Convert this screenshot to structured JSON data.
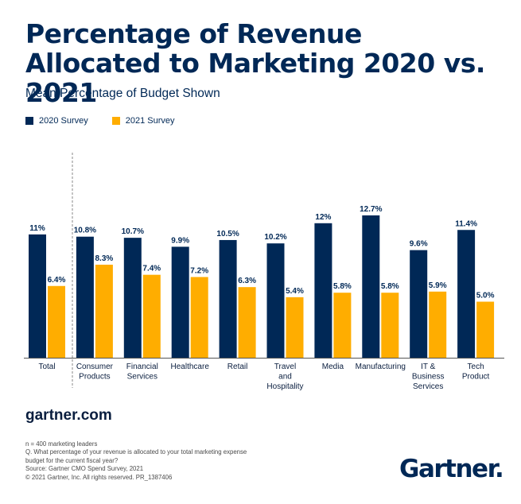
{
  "title": "Percentage of Revenue Allocated to Marketing 2020 vs. 2021",
  "subtitle": "Mean Percentage of Budget Shown",
  "legend": [
    {
      "label": "2020 Survey",
      "color": "#002856"
    },
    {
      "label": "2021 Survey",
      "color": "#ffad00"
    }
  ],
  "chart_data": {
    "type": "bar",
    "categories": [
      [
        "Total"
      ],
      [
        "Consumer",
        "Products"
      ],
      [
        "Financial",
        "Services"
      ],
      [
        "Healthcare"
      ],
      [
        "Retail"
      ],
      [
        "Travel",
        "and",
        "Hospitality"
      ],
      [
        "Media"
      ],
      [
        "Manufacturing"
      ],
      [
        "IT &",
        "Business",
        "Services"
      ],
      [
        "Tech",
        "Product"
      ]
    ],
    "series": [
      {
        "name": "2020 Survey",
        "color": "#002856",
        "values": [
          11,
          10.8,
          10.7,
          9.9,
          10.5,
          10.2,
          12,
          12.7,
          9.6,
          11.4
        ],
        "labels": [
          "11%",
          "10.8%",
          "10.7%",
          "9.9%",
          "10.5%",
          "10.2%",
          "12%",
          "12.7%",
          "9.6%",
          "11.4%"
        ]
      },
      {
        "name": "2021 Survey",
        "color": "#ffad00",
        "values": [
          6.4,
          8.3,
          7.4,
          7.2,
          6.3,
          5.4,
          5.8,
          5.8,
          5.9,
          5.0
        ],
        "labels": [
          "6.4%",
          "8.3%",
          "7.4%",
          "7.2%",
          "6.3%",
          "5.4%",
          "5.8%",
          "5.8%",
          "5.9%",
          "5.0%"
        ]
      }
    ],
    "title": "",
    "xlabel": "",
    "ylabel": "",
    "ylim": [
      0,
      14
    ],
    "grid": false,
    "legend_position": "top-left"
  },
  "site": "gartner.com",
  "footnotes": [
    "n = 400 marketing leaders",
    "Q. What percentage of your revenue is allocated to your total marketing expense",
    "budget for the current fiscal year?",
    "Source: Gartner CMO Spend Survey, 2021",
    "© 2021 Gartner, Inc. All rights reserved. PR_1387406"
  ],
  "logo": {
    "text": "Gartner",
    "mark": "."
  }
}
